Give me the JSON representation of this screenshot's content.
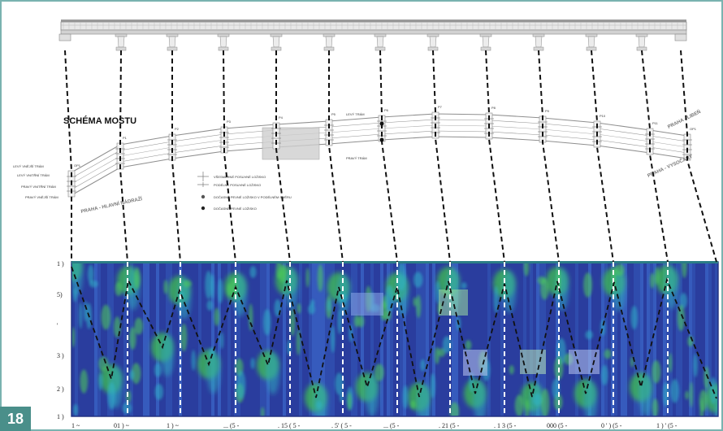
{
  "page_number": "18",
  "schema": {
    "title": "SCHÉMA MOSTU",
    "direction_left": "PRAHA - HLAVNÍ NÁDRAŽÍ",
    "direction_right": "PRAHA - VYSOČANY",
    "direction_top_right": "PRAHA - LIBEŇ",
    "beam_labels_left": [
      "LEVÝ VNĚJŠÍ TRÁM",
      "LEVÝ VNITŘNÍ TRÁM",
      "PRAVÝ VNITŘNÍ TRÁM",
      "PRAVÝ VNĚJŠÍ TRÁM"
    ],
    "beam_labels_mid": [
      "LEVÝ TRÁM",
      "PRAVÝ TRÁM"
    ],
    "pier_labels": [
      "OP1",
      "P1",
      "P2",
      "P3",
      "P4",
      "P5",
      "P6",
      "P7",
      "P8",
      "P9",
      "P10",
      "P11",
      "OP1"
    ],
    "legend": [
      "VŠESMĚRNÉ POSUVNÉ LOŽISKO",
      "PODÉLNĚ POSUVNÉ LOŽISKO",
      "DOČASNĚ PEVNÉ LOŽISKO V PODÉLNÉM SMĚRU",
      "DOČASNĚ PEVNÉ LOŽISKO"
    ]
  },
  "spectrogram": {
    "y_tick_labels": [
      "1 )",
      "5)",
      "'",
      "3 )",
      "2 )",
      "1 )"
    ],
    "x_tick_labels": [
      "1 ~",
      "01 ) ~",
      "1 ) ~",
      "... (5 -",
      ". 15 ( 5 -",
      ". 5' ( 5 -",
      "... (5 -",
      ". 21 (5 -",
      ". 1 3 (5 -",
      "000 (5 -",
      "0 ' ) (5 -",
      "1 ) ' (5 -"
    ]
  },
  "colors": {
    "frame": "#7ab3b0",
    "page_badge": "#4a8f8a",
    "spectro_bg": "#2a3d9e",
    "spectro_green": "#3fbf4f"
  }
}
